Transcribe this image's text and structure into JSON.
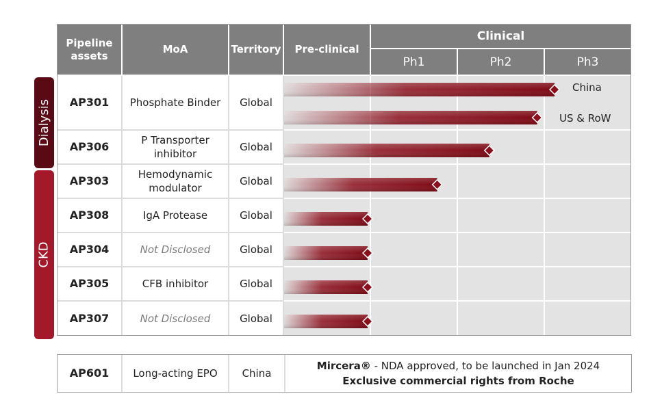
{
  "header": {
    "pipeline_assets": "Pipeline assets",
    "moa": "MoA",
    "territory": "Territory",
    "preclinical": "Pre-clinical",
    "clinical": "Clinical",
    "ph1": "Ph1",
    "ph2": "Ph2",
    "ph3": "Ph3"
  },
  "groups": {
    "dialysis": "Dialysis",
    "ckd": "CKD"
  },
  "rows": [
    {
      "asset": "AP301",
      "moa": "Phosphate Binder",
      "territory": "Global"
    },
    {
      "asset": "AP306",
      "moa": "P Transporter inhibitor",
      "territory": "Global"
    },
    {
      "asset": "AP303",
      "moa": "Hemodynamic modulator",
      "territory": "Global"
    },
    {
      "asset": "AP308",
      "moa": "IgA Protease",
      "territory": "Global"
    },
    {
      "asset": "AP304",
      "moa": "Not Disclosed",
      "territory": "Global"
    },
    {
      "asset": "AP305",
      "moa": "CFB inhibitor",
      "territory": "Global"
    },
    {
      "asset": "AP307",
      "moa": "Not Disclosed",
      "territory": "Global"
    }
  ],
  "footer": {
    "asset": "AP601",
    "moa": "Long-acting EPO",
    "territory": "China",
    "note_brand": "Mircera®",
    "note_rest": " - NDA approved, to be launched in Jan 2024",
    "note_line2": "Exclusive commercial rights from Roche"
  },
  "colors": {
    "header": "#7f7f7f",
    "bar": "#8b0f1c",
    "dialysis": "#5a0a14",
    "ckd": "#a3192a",
    "grid": "#e3e3e3"
  },
  "chart_data": {
    "type": "bar",
    "orientation": "horizontal",
    "stages": [
      "Pre-clinical",
      "Ph1",
      "Ph2",
      "Ph3"
    ],
    "series": [
      {
        "asset": "AP301",
        "label": "China",
        "progress": 3.15
      },
      {
        "asset": "AP301",
        "label": "US & RoW",
        "progress": 2.95
      },
      {
        "asset": "AP306",
        "label": "",
        "progress": 2.4
      },
      {
        "asset": "AP303",
        "label": "",
        "progress": 1.8
      },
      {
        "asset": "AP308",
        "label": "",
        "progress": 1.0
      },
      {
        "asset": "AP304",
        "label": "",
        "progress": 1.0
      },
      {
        "asset": "AP305",
        "label": "",
        "progress": 1.0
      },
      {
        "asset": "AP307",
        "label": "",
        "progress": 1.0
      }
    ]
  }
}
